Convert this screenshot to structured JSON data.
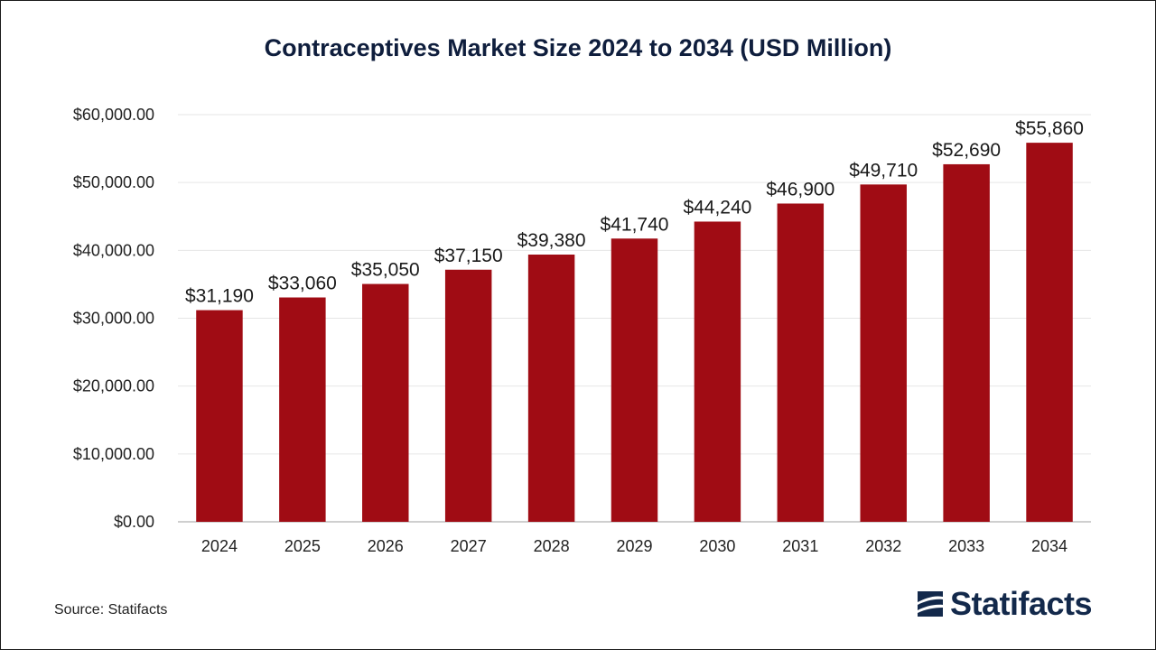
{
  "chart_data": {
    "type": "bar",
    "title": "Contraceptives Market Size 2024 to 2034 (USD Million)",
    "categories": [
      "2024",
      "2025",
      "2026",
      "2027",
      "2028",
      "2029",
      "2030",
      "2031",
      "2032",
      "2033",
      "2034"
    ],
    "values": [
      31190,
      33060,
      35050,
      37150,
      39380,
      41740,
      44240,
      46900,
      49710,
      52690,
      55860
    ],
    "value_labels": [
      "$31,190",
      "$33,060",
      "$35,050",
      "$37,150",
      "$39,380",
      "$41,740",
      "$44,240",
      "$46,900",
      "$49,710",
      "$52,690",
      "$55,860"
    ],
    "ylim": [
      0,
      60000
    ],
    "y_ticks": [
      0,
      10000,
      20000,
      30000,
      40000,
      50000,
      60000
    ],
    "y_tick_labels": [
      "$0.00",
      "$10,000.00",
      "$20,000.00",
      "$30,000.00",
      "$40,000.00",
      "$50,000.00",
      "$60,000.00"
    ],
    "xlabel": "",
    "ylabel": "",
    "grid": true,
    "bar_color": "#a00c14"
  },
  "footer": {
    "source": "Source: Statifacts",
    "brand": "Statifacts",
    "brand_color": "#13294b"
  }
}
